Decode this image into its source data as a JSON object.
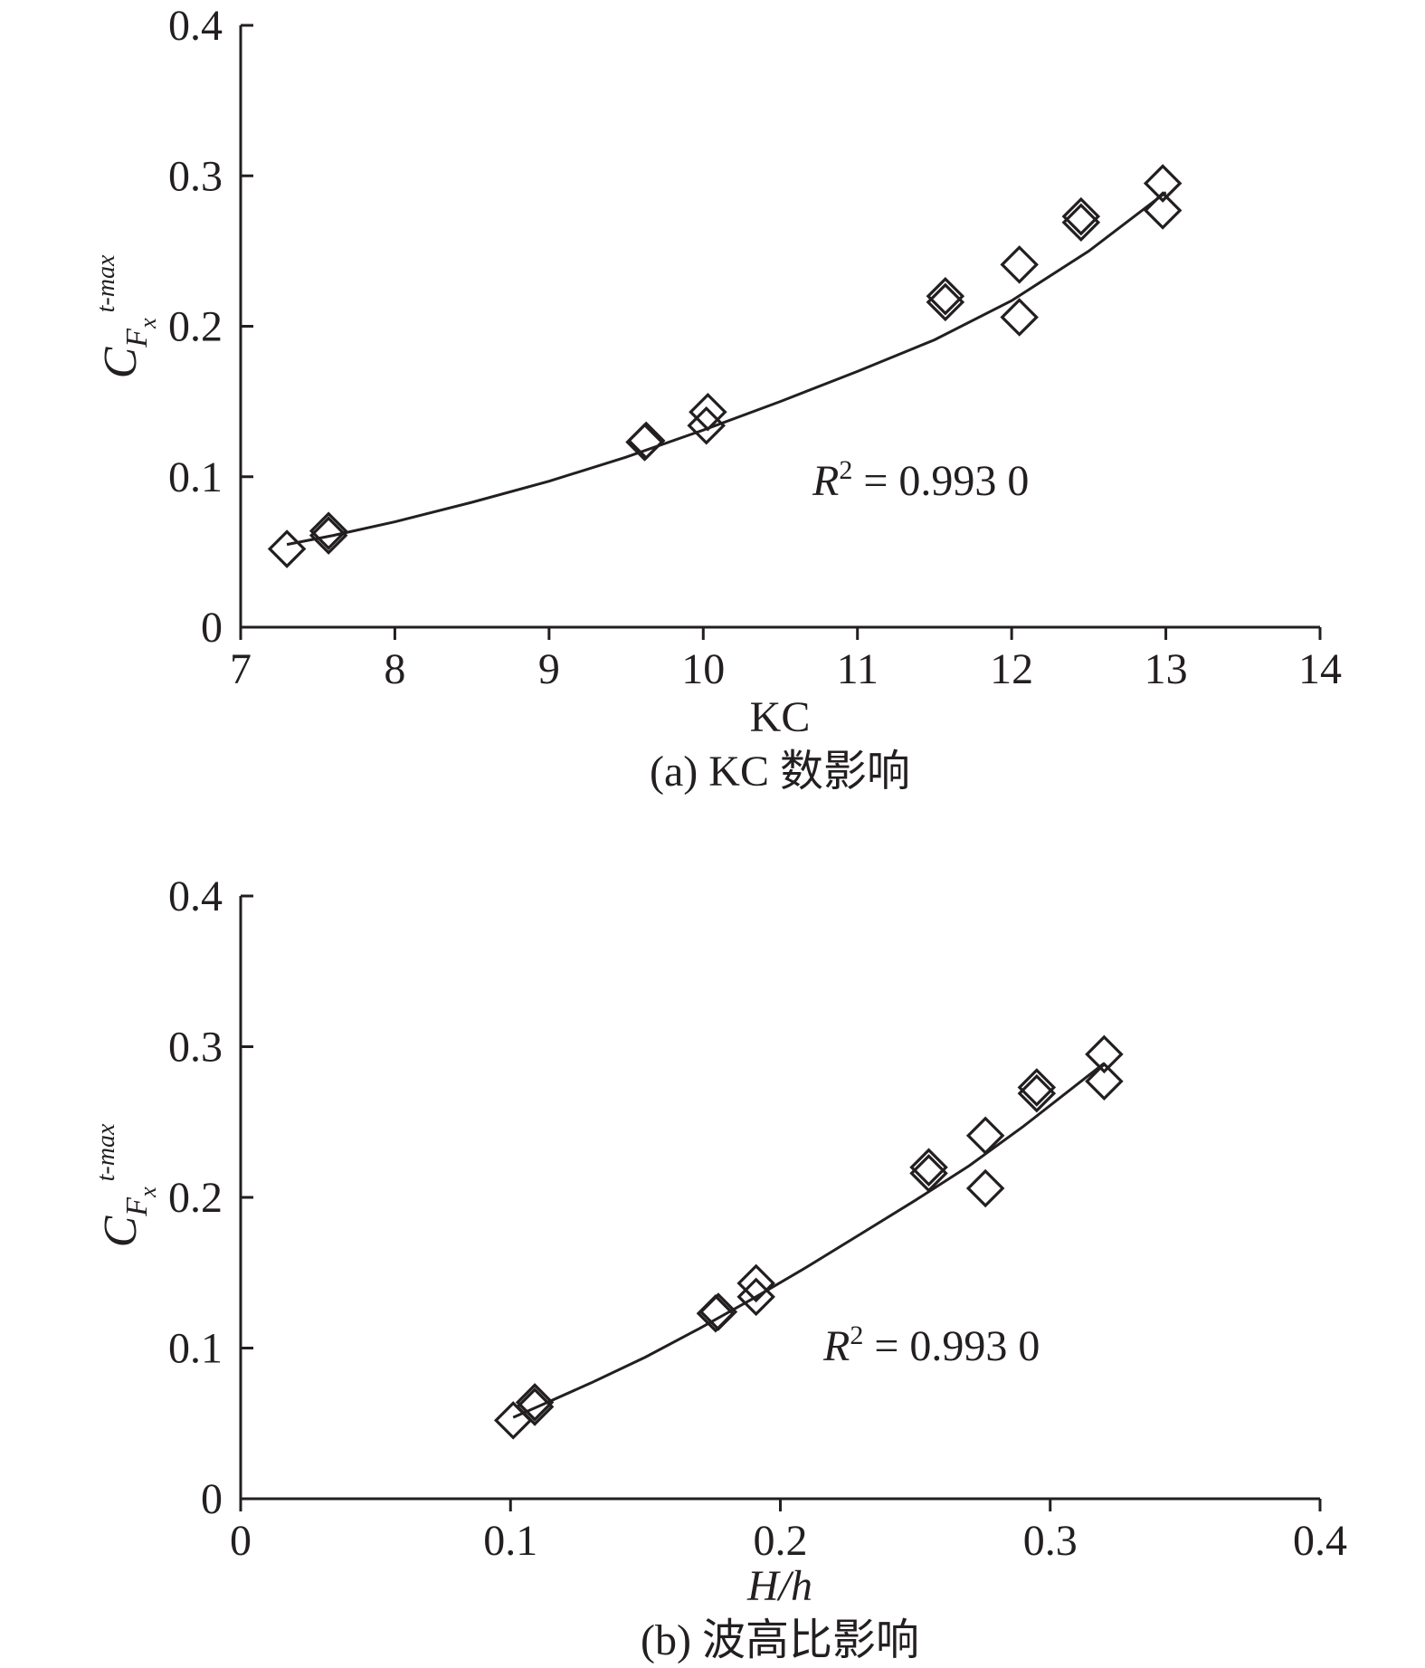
{
  "chart_data": [
    {
      "type": "scatter",
      "panel": "a",
      "caption": "(a) KC 数影响",
      "xlabel": "KC",
      "ylabel": {
        "base": "C",
        "sub": "F",
        "subsub": "x",
        "sup": "t-max"
      },
      "xlim": [
        7,
        14
      ],
      "ylim": [
        0,
        0.4
      ],
      "xticks": [
        "7",
        "8",
        "9",
        "10",
        "11",
        "12",
        "13",
        "14"
      ],
      "yticks": [
        "0",
        "0.1",
        "0.2",
        "0.3",
        "0.4"
      ],
      "grid": false,
      "annotation": {
        "var": "R",
        "sup": "2",
        "text": " = 0.993 0"
      },
      "points": [
        {
          "x": 7.3,
          "y": 0.052
        },
        {
          "x": 7.57,
          "y": 0.061
        },
        {
          "x": 7.57,
          "y": 0.064
        },
        {
          "x": 9.62,
          "y": 0.123
        },
        {
          "x": 9.63,
          "y": 0.124
        },
        {
          "x": 10.02,
          "y": 0.134
        },
        {
          "x": 10.03,
          "y": 0.143
        },
        {
          "x": 11.57,
          "y": 0.216
        },
        {
          "x": 11.57,
          "y": 0.22
        },
        {
          "x": 12.05,
          "y": 0.241
        },
        {
          "x": 12.05,
          "y": 0.206
        },
        {
          "x": 12.45,
          "y": 0.269
        },
        {
          "x": 12.45,
          "y": 0.273
        },
        {
          "x": 12.98,
          "y": 0.295
        },
        {
          "x": 12.98,
          "y": 0.277
        }
      ],
      "fit": {
        "x": [
          7.3,
          7.6,
          8.0,
          8.5,
          9.0,
          9.5,
          10.0,
          10.5,
          11.0,
          11.5,
          12.0,
          12.5,
          13.0
        ],
        "y": [
          0.055,
          0.061,
          0.07,
          0.083,
          0.097,
          0.113,
          0.131,
          0.15,
          0.17,
          0.191,
          0.217,
          0.25,
          0.289
        ]
      }
    },
    {
      "type": "scatter",
      "panel": "b",
      "caption": "(b) 波高比影响",
      "xlabel": "H/h",
      "ylabel": {
        "base": "C",
        "sub": "F",
        "subsub": "x",
        "sup": "t-max"
      },
      "xlim": [
        0,
        0.4
      ],
      "ylim": [
        0,
        0.4
      ],
      "xticks": [
        "0",
        "0.1",
        "0.2",
        "0.3",
        "0.4"
      ],
      "yticks": [
        "0",
        "0.1",
        "0.2",
        "0.3",
        "0.4"
      ],
      "grid": false,
      "annotation": {
        "var": "R",
        "sup": "2",
        "text": " = 0.993 0"
      },
      "points": [
        {
          "x": 0.101,
          "y": 0.052
        },
        {
          "x": 0.109,
          "y": 0.061
        },
        {
          "x": 0.109,
          "y": 0.064
        },
        {
          "x": 0.176,
          "y": 0.123
        },
        {
          "x": 0.177,
          "y": 0.124
        },
        {
          "x": 0.191,
          "y": 0.134
        },
        {
          "x": 0.191,
          "y": 0.143
        },
        {
          "x": 0.255,
          "y": 0.216
        },
        {
          "x": 0.255,
          "y": 0.22
        },
        {
          "x": 0.276,
          "y": 0.241
        },
        {
          "x": 0.276,
          "y": 0.206
        },
        {
          "x": 0.295,
          "y": 0.269
        },
        {
          "x": 0.295,
          "y": 0.273
        },
        {
          "x": 0.32,
          "y": 0.295
        },
        {
          "x": 0.32,
          "y": 0.277
        }
      ],
      "fit": {
        "x": [
          0.101,
          0.11,
          0.13,
          0.15,
          0.17,
          0.19,
          0.21,
          0.23,
          0.25,
          0.27,
          0.29,
          0.31,
          0.32
        ],
        "y": [
          0.054,
          0.061,
          0.077,
          0.094,
          0.113,
          0.133,
          0.154,
          0.176,
          0.198,
          0.221,
          0.247,
          0.275,
          0.289
        ]
      }
    }
  ]
}
